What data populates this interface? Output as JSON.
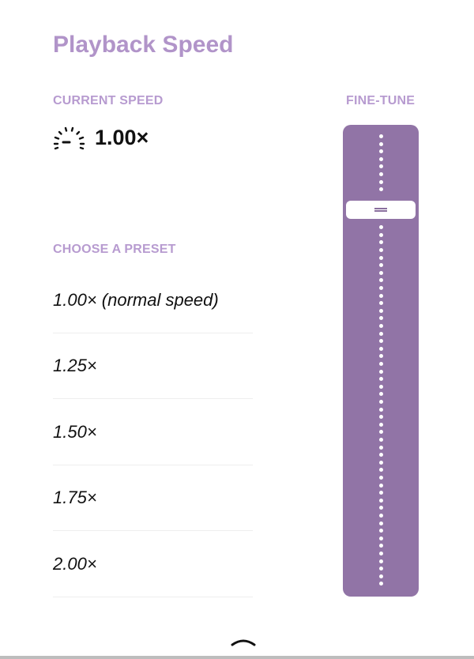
{
  "title": "Playback Speed",
  "current": {
    "label": "CURRENT SPEED",
    "value": "1.00×",
    "icon": "speedometer-icon"
  },
  "fine_tune": {
    "label": "FINE-TUNE",
    "thumb_position_fraction_from_bottom": 0.82,
    "accent_color": "#9174a6"
  },
  "presets": {
    "label": "CHOOSE A PRESET",
    "items": [
      "1.00× (normal speed)",
      "1.25×",
      "1.50×",
      "1.75×",
      "2.00×"
    ]
  },
  "footer": {
    "icon": "chevron-up-icon"
  }
}
